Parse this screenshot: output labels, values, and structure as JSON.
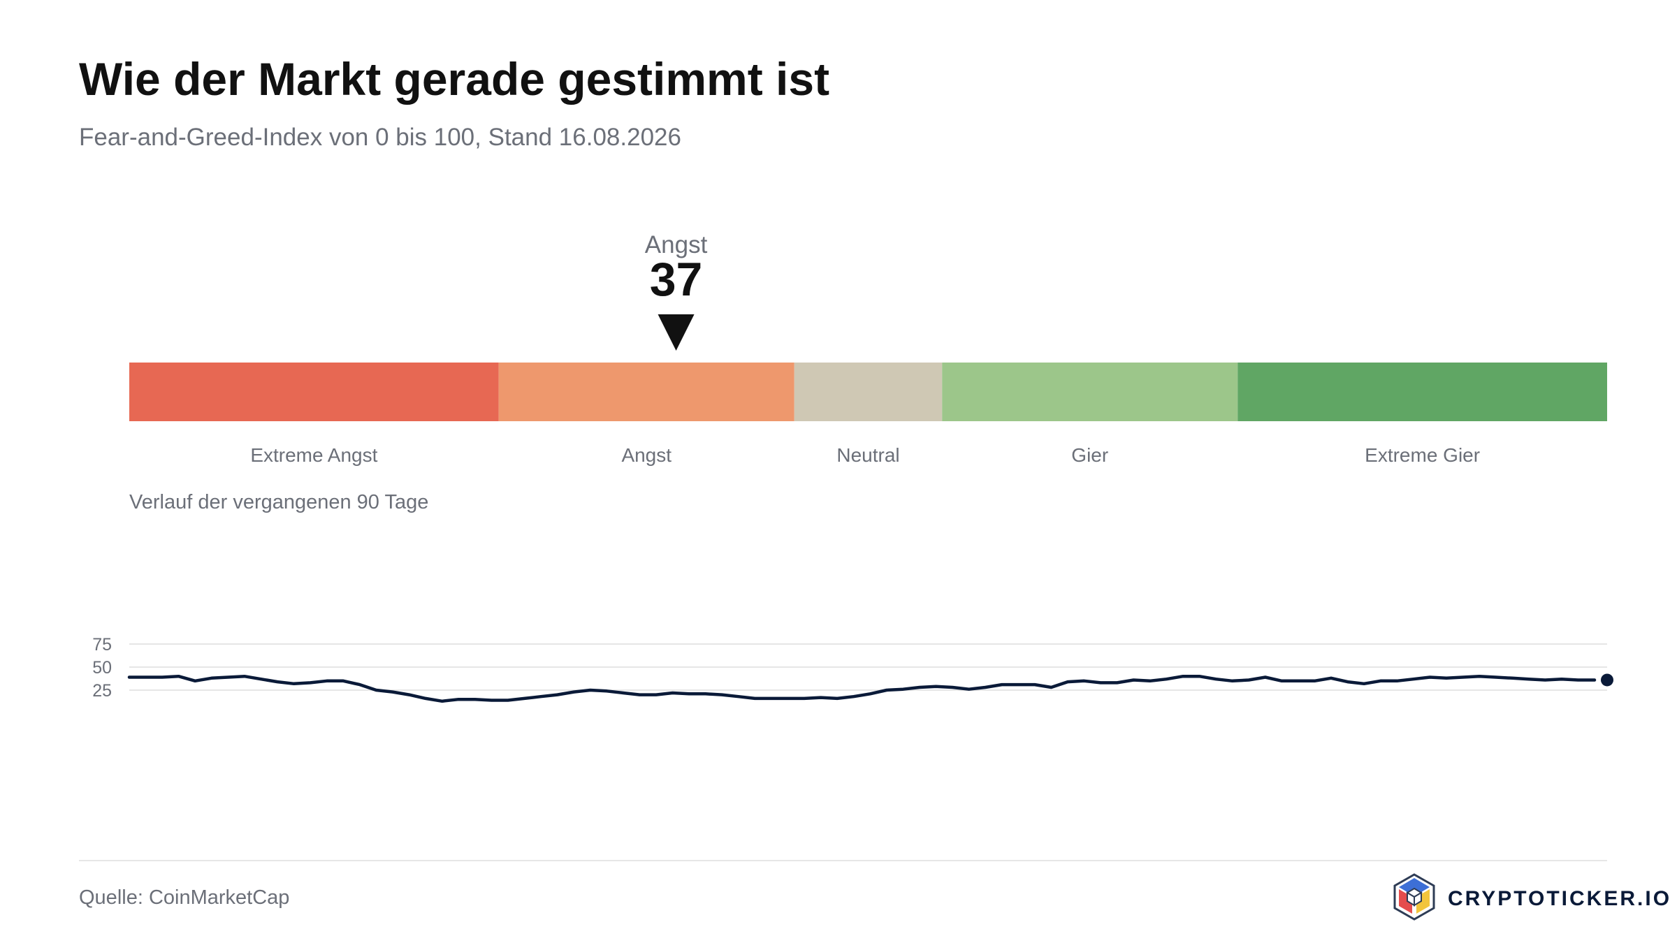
{
  "header": {
    "title": "Wie der Markt gerade gestimmt ist",
    "subtitle": "Fear-and-Greed-Index von 0 bis 100, Stand 16.08.2026"
  },
  "gauge": {
    "value": 37,
    "value_label": "Angst",
    "range": [
      0,
      100
    ],
    "segments": [
      {
        "label": "Extreme Angst",
        "from": 0,
        "to": 25,
        "color": "#E76853"
      },
      {
        "label": "Angst",
        "from": 25,
        "to": 45,
        "color": "#EE986D"
      },
      {
        "label": "Neutral",
        "from": 45,
        "to": 55,
        "color": "#CFC8B4"
      },
      {
        "label": "Gier",
        "from": 55,
        "to": 75,
        "color": "#9CC68A"
      },
      {
        "label": "Extreme Gier",
        "from": 75,
        "to": 100,
        "color": "#60A664"
      }
    ],
    "pointer_color": "#111111"
  },
  "history": {
    "title": "Verlauf der vergangenen 90 Tage"
  },
  "chart_data": {
    "type": "line",
    "x": [
      1,
      2,
      3,
      4,
      5,
      6,
      7,
      8,
      9,
      10,
      11,
      12,
      13,
      14,
      15,
      16,
      17,
      18,
      19,
      20,
      21,
      22,
      23,
      24,
      25,
      26,
      27,
      28,
      29,
      30,
      31,
      32,
      33,
      34,
      35,
      36,
      37,
      38,
      39,
      40,
      41,
      42,
      43,
      44,
      45,
      46,
      47,
      48,
      49,
      50,
      51,
      52,
      53,
      54,
      55,
      56,
      57,
      58,
      59,
      60,
      61,
      62,
      63,
      64,
      65,
      66,
      67,
      68,
      69,
      70,
      71,
      72,
      73,
      74,
      75,
      76,
      77,
      78,
      79,
      80,
      81,
      82,
      83,
      84,
      85,
      86,
      87,
      88,
      89,
      90
    ],
    "series": [
      {
        "values": [
          39,
          39,
          39,
          40,
          35,
          38,
          39,
          40,
          37,
          34,
          32,
          33,
          35,
          35,
          31,
          25,
          23,
          20,
          16,
          13,
          15,
          15,
          14,
          14,
          16,
          18,
          20,
          23,
          25,
          24,
          22,
          20,
          20,
          22,
          21,
          21,
          20,
          18,
          16,
          16,
          16,
          16,
          17,
          16,
          18,
          21,
          25,
          26,
          28,
          29,
          28,
          26,
          28,
          31,
          31,
          31,
          28,
          34,
          35,
          33,
          33,
          36,
          35,
          37,
          40,
          40,
          37,
          35,
          36,
          39,
          35,
          35,
          35,
          38,
          34,
          32,
          35,
          35,
          37,
          39,
          38,
          39,
          40,
          39,
          38,
          37,
          36,
          37,
          36,
          36
        ],
        "color": "#0A1A38"
      }
    ],
    "yticks": [
      25,
      50,
      75
    ],
    "ylim": [
      0,
      100
    ],
    "grid": true,
    "legend": "none"
  },
  "footer": {
    "source": "Quelle: CoinMarketCap",
    "brand": "CRYPTOTICKER.IO",
    "brand_icon": "cube-logo-icon"
  }
}
